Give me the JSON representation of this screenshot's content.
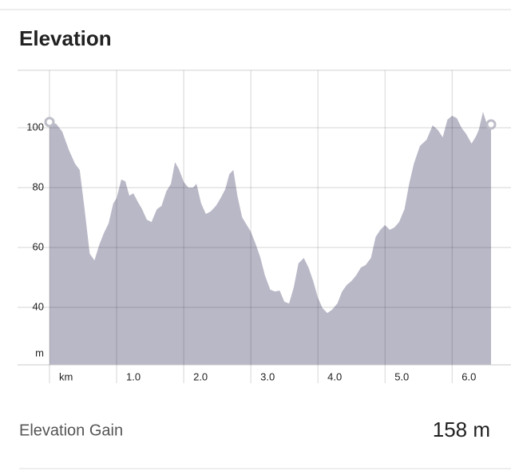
{
  "chart_data": {
    "type": "area",
    "title": "Elevation",
    "xlabel": "km",
    "ylabel": "m",
    "color": "#b9b8c7",
    "x": [
      0,
      0.1,
      0.19,
      0.29,
      0.38,
      0.45,
      0.52,
      0.6,
      0.67,
      0.74,
      0.81,
      0.88,
      0.95,
      1.0,
      1.07,
      1.13,
      1.19,
      1.25,
      1.31,
      1.38,
      1.45,
      1.52,
      1.6,
      1.67,
      1.74,
      1.81,
      1.87,
      1.93,
      2.0,
      2.07,
      2.14,
      2.19,
      2.26,
      2.33,
      2.4,
      2.48,
      2.55,
      2.62,
      2.68,
      2.74,
      2.8,
      2.87,
      2.94,
      3.0,
      3.07,
      3.14,
      3.21,
      3.29,
      3.36,
      3.43,
      3.5,
      3.57,
      3.64,
      3.71,
      3.79,
      3.86,
      3.93,
      4.0,
      4.07,
      4.14,
      4.21,
      4.29,
      4.36,
      4.43,
      4.5,
      4.57,
      4.64,
      4.71,
      4.79,
      4.86,
      4.93,
      5.0,
      5.07,
      5.14,
      5.21,
      5.29,
      5.36,
      5.43,
      5.52,
      5.62,
      5.71,
      5.79,
      5.86,
      5.93,
      6.0,
      6.07,
      6.14,
      6.21,
      6.29,
      6.36,
      6.4,
      6.46,
      6.52,
      6.58
    ],
    "values": [
      101.9,
      101.3,
      98.7,
      92.5,
      88,
      85.9,
      73.3,
      57.9,
      55.7,
      60.8,
      64.8,
      68,
      74.7,
      76.5,
      82.7,
      82.1,
      77.3,
      78.1,
      75.5,
      72.8,
      69.3,
      68.5,
      72.8,
      73.9,
      78.7,
      81.3,
      88.5,
      86.1,
      81.9,
      80,
      80,
      81.3,
      74.7,
      71.2,
      72,
      73.9,
      76.5,
      79.5,
      84.5,
      85.9,
      77.3,
      70.1,
      67.5,
      65.3,
      61.3,
      56.8,
      50.7,
      45.9,
      45.3,
      45.6,
      41.9,
      41.3,
      46.7,
      54.7,
      56.5,
      53.3,
      48.8,
      43.2,
      39.7,
      38.1,
      39.2,
      41.3,
      45.3,
      47.5,
      48.8,
      50.7,
      53.3,
      54.1,
      56.5,
      63.5,
      65.9,
      67.5,
      65.9,
      66.7,
      68.5,
      72.8,
      81.3,
      88,
      93.9,
      96,
      100.8,
      99.2,
      96.8,
      102.7,
      104,
      103.2,
      100,
      97.9,
      94.7,
      97.3,
      99.5,
      105.3,
      101.1,
      101.1
    ],
    "xlim": [
      0,
      6.58
    ],
    "ylim": [
      20.8,
      119.2
    ],
    "xticks": [
      0,
      {
        "value": 1,
        "label": "1.0"
      },
      {
        "value": 2,
        "label": "2.0"
      },
      {
        "value": 3,
        "label": "3.0"
      },
      {
        "value": 4,
        "label": "4.0"
      },
      {
        "value": 5,
        "label": "5.0"
      },
      {
        "value": 6,
        "label": "6.0"
      }
    ],
    "yticks": [
      40,
      60,
      80,
      100
    ],
    "grid": true
  },
  "stat": {
    "label": "Elevation Gain",
    "value": "158 m"
  }
}
